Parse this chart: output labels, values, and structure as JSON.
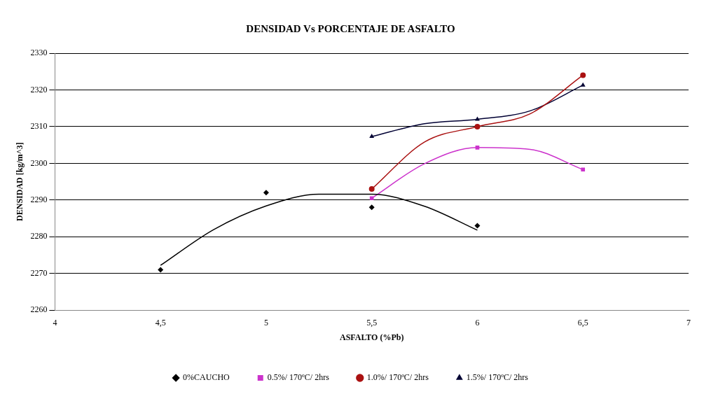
{
  "chart_data": {
    "type": "scatter",
    "title": "DENSIDAD Vs PORCENTAJE DE ASFALTO",
    "xlabel": "ASFALTO (%Pb)",
    "ylabel": "DENSIDAD [kg/m^3]",
    "xlim": [
      4,
      7
    ],
    "xticks": [
      4,
      {
        "value": 4.5,
        "label": "4,5"
      },
      5,
      {
        "value": 5.5,
        "label": "5,5"
      },
      6,
      {
        "value": 6.5,
        "label": "6,5"
      },
      7
    ],
    "ylim": [
      2260,
      2330
    ],
    "yticks": [
      2260,
      2270,
      2280,
      2290,
      2300,
      2310,
      2320,
      2330
    ],
    "grid": "y",
    "legend": "bottom",
    "series": [
      {
        "name": "0%CAUCHO",
        "marker": "diamond",
        "color": "#000000",
        "x": [
          4.5,
          5,
          5.5,
          6
        ],
        "values": [
          2271,
          2292,
          2288,
          2283
        ]
      },
      {
        "name": "0.5%/ 170ºC/ 2hrs",
        "marker": "square",
        "color": "#cc33cc",
        "x": [
          5.5,
          6,
          6.5
        ],
        "values": [
          2290.5,
          2304.3,
          2298.3
        ]
      },
      {
        "name": "1.0%/ 170ºC/ 2hrs",
        "marker": "circle",
        "color": "#aa1111",
        "x": [
          5.5,
          6,
          6.5
        ],
        "values": [
          2293,
          2310,
          2324
        ]
      },
      {
        "name": "1.5%/ 170ºC/ 2hrs",
        "marker": "triangle",
        "color": "#000033",
        "x": [
          5.5,
          6,
          6.5
        ],
        "values": [
          2307.3,
          2312,
          2321.3
        ]
      },
      {
        "type": "line",
        "marker": "none",
        "color": "#000000",
        "x": [
          4.5,
          4.75,
          5,
          5.25,
          5.5,
          5.75,
          6
        ],
        "values": [
          2272.2,
          2281.9,
          2288.4,
          2291.6,
          2291.6,
          2288.3,
          2281.8
        ]
      },
      {
        "type": "line",
        "marker": "none",
        "color": "#cc33cc",
        "x": [
          5.5,
          5.75,
          6,
          6.25,
          6.5
        ],
        "values": [
          2290.5,
          2299.9,
          2304.3,
          2303.8,
          2298.3
        ]
      },
      {
        "type": "line",
        "marker": "none",
        "color": "#aa1111",
        "x": [
          5.5,
          5.75,
          6,
          6.25,
          6.5
        ],
        "values": [
          2293,
          2305.8,
          2310,
          2313.5,
          2324
        ]
      },
      {
        "type": "line",
        "marker": "none",
        "color": "#000033",
        "x": [
          5.5,
          5.75,
          6,
          6.25,
          6.5
        ],
        "values": [
          2307.3,
          2310.8,
          2312,
          2314.3,
          2321.3
        ]
      }
    ]
  }
}
